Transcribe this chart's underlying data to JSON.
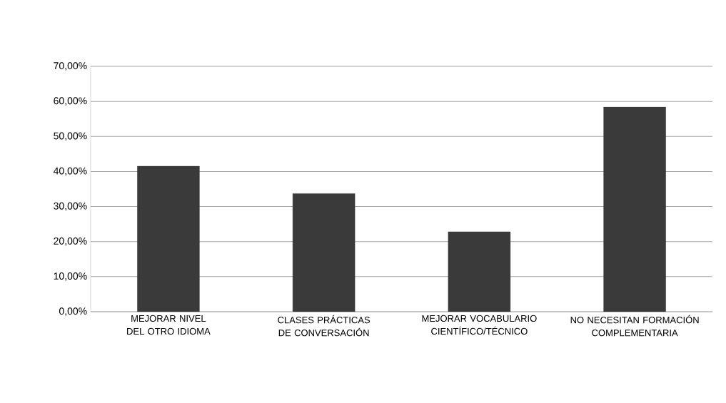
{
  "chart_data": {
    "type": "bar",
    "categories": [
      "MEJORAR NIVEL DEL OTRO IDIOMA",
      "CLASES PRÁCTICAS DE CONVERSACIÓN",
      "MEJORAR VOCABULARIO CIENTÍFICO/TÉCNICO",
      "NO NECESITAN FORMACIÓN COMPLEMENTARIA"
    ],
    "values": [
      41.5,
      33.7,
      22.8,
      58.4
    ],
    "color": "#3a3a3a",
    "ylim": [
      0,
      70
    ],
    "yticks": [
      {
        "value": 0,
        "label": "0,00%"
      },
      {
        "value": 10,
        "label": "10,00%"
      },
      {
        "value": 20,
        "label": "20,00%"
      },
      {
        "value": 30,
        "label": "30,00%"
      },
      {
        "value": 40,
        "label": "40,00%"
      },
      {
        "value": 50,
        "label": "50,00%"
      },
      {
        "value": 60,
        "label": "60,00%"
      },
      {
        "value": 70,
        "label": "70,00%"
      }
    ],
    "grid": "y"
  }
}
